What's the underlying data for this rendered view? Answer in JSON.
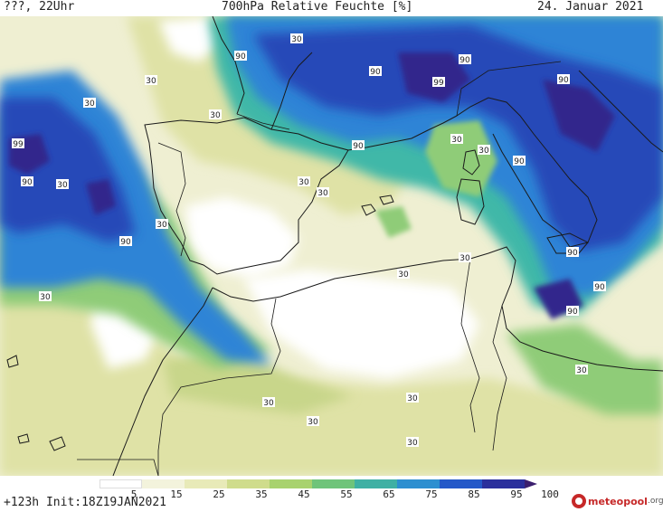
{
  "header": {
    "left": "???, 22Uhr",
    "title": "700hPa Relative Feuchte [%]",
    "date": "24. Januar 2021"
  },
  "footer": {
    "init": "+123h  Init:18Z19JAN2021",
    "logo_name": "meteopool",
    "logo_tld": ".org"
  },
  "colorbar": {
    "labels": [
      "5",
      "15",
      "25",
      "35",
      "45",
      "55",
      "65",
      "75",
      "85",
      "95",
      "100"
    ],
    "colors": [
      "#ffffff",
      "#f3f3dc",
      "#e8eab8",
      "#cfdc8c",
      "#a8d26e",
      "#6fc47a",
      "#3fb0a4",
      "#2d8fd0",
      "#2458c8",
      "#2a2f9c",
      "#3b1f6e"
    ]
  },
  "map": {
    "contour_labels": [
      "30",
      "90",
      "99"
    ],
    "colors": {
      "dry": "#ffffff",
      "light": "#efefd2",
      "pale_olive": "#dfe2a6",
      "olive": "#c8d68a",
      "green": "#8fcc78",
      "teal": "#40b8a8",
      "blue": "#2f84d6",
      "deep_blue": "#2648b8",
      "violet": "#32288c",
      "coast": "#1a1a1a"
    }
  }
}
